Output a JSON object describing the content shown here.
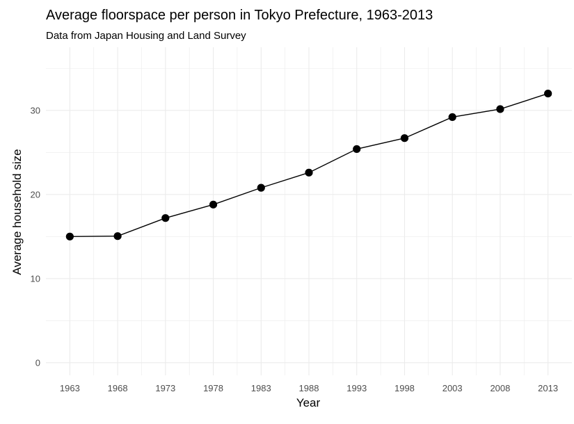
{
  "chart_data": {
    "type": "line",
    "title": "Average floorspace per person in Tokyo Prefecture, 1963-2013",
    "subtitle": "Data from Japan Housing and Land Survey",
    "xlabel": "Year",
    "ylabel": "Average household size",
    "x": [
      1963,
      1968,
      1973,
      1978,
      1983,
      1988,
      1993,
      1998,
      2003,
      2008,
      2013
    ],
    "series": [
      {
        "values": [
          15.0,
          15.05,
          17.2,
          18.8,
          20.8,
          22.6,
          25.4,
          26.7,
          29.2,
          30.15,
          32.0
        ]
      }
    ],
    "xlim": [
      1960.5,
      2015.5
    ],
    "ylim": [
      -1.5,
      37.5
    ],
    "xticks": [
      1963,
      1968,
      1973,
      1978,
      1983,
      1988,
      1993,
      1998,
      2003,
      2008,
      2013
    ],
    "yticks": [
      0,
      10,
      20,
      30
    ],
    "grid": true,
    "legend": "none",
    "line_color": "#000000",
    "point_color": "#000000",
    "grid_color": "#ebebeb"
  }
}
